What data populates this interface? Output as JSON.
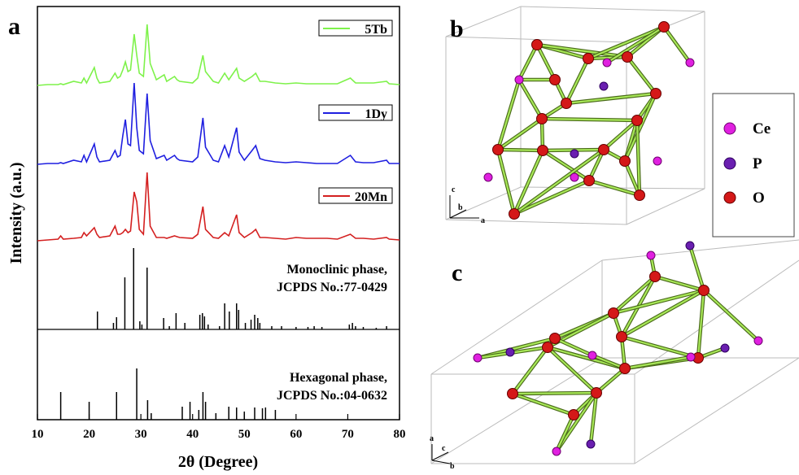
{
  "chart_data": {
    "type": "line",
    "panel_label": "a",
    "xlabel": "2θ (Degree)",
    "ylabel": "Intensity (a.u.)",
    "xlim": [
      10,
      80
    ],
    "xticks": [
      10,
      20,
      30,
      40,
      50,
      60,
      70,
      80
    ],
    "ylim": [
      0,
      110
    ],
    "x": [
      10,
      12,
      14,
      14.5,
      15,
      17,
      18.5,
      19,
      19.5,
      21,
      21.5,
      22,
      24,
      25,
      25.5,
      26,
      26.5,
      27,
      27.5,
      28,
      28.7,
      29.2,
      29.7,
      30.5,
      31.2,
      31.8,
      33,
      34.5,
      35,
      36.5,
      37,
      37.5,
      40,
      41,
      42,
      42.5,
      44,
      45,
      46.2,
      47,
      48.5,
      49,
      50,
      51.5,
      52.2,
      53,
      54,
      56,
      58,
      60,
      62,
      64,
      66,
      68,
      70.5,
      71.5,
      73,
      75,
      77.5,
      78,
      80
    ],
    "series": [
      {
        "name": "5Tb",
        "color": "#7ef24a",
        "values": [
          3,
          4,
          4,
          5,
          4,
          8,
          6,
          12,
          6,
          25,
          12,
          6,
          8,
          18,
          12,
          14,
          22,
          32,
          20,
          22,
          66,
          40,
          18,
          14,
          78,
          30,
          10,
          16,
          8,
          14,
          10,
          8,
          6,
          12,
          40,
          20,
          8,
          6,
          18,
          10,
          24,
          12,
          8,
          14,
          18,
          8,
          8,
          6,
          5,
          6,
          5,
          5,
          5,
          5,
          12,
          6,
          6,
          6,
          8,
          5,
          4
        ]
      },
      {
        "name": "1Dy",
        "color": "#1f1fe0",
        "values": [
          5,
          6,
          6,
          7,
          6,
          10,
          8,
          16,
          8,
          30,
          14,
          8,
          10,
          22,
          14,
          16,
          40,
          60,
          30,
          28,
          105,
          50,
          22,
          18,
          92,
          34,
          12,
          16,
          10,
          16,
          12,
          10,
          8,
          14,
          62,
          26,
          10,
          8,
          28,
          14,
          50,
          20,
          10,
          22,
          28,
          12,
          10,
          8,
          7,
          8,
          7,
          6,
          6,
          6,
          16,
          8,
          7,
          7,
          10,
          6,
          6
        ]
      },
      {
        "name": "20Mn",
        "color": "#d42020",
        "values": [
          2,
          3,
          4,
          8,
          4,
          5,
          6,
          12,
          8,
          18,
          10,
          6,
          8,
          20,
          10,
          10,
          12,
          16,
          12,
          14,
          62,
          50,
          16,
          10,
          86,
          20,
          6,
          6,
          5,
          8,
          7,
          6,
          5,
          10,
          44,
          16,
          6,
          5,
          12,
          8,
          34,
          12,
          6,
          12,
          16,
          6,
          6,
          5,
          4,
          6,
          5,
          5,
          5,
          4,
          10,
          5,
          5,
          4,
          6,
          4,
          3
        ]
      }
    ],
    "sticks": [
      {
        "lines": [
          "Monoclinic phase,",
          "JCPDS No.:77-0429"
        ],
        "color": "#000000",
        "x": [
          21.6,
          24.7,
          25.3,
          26.9,
          28.6,
          29.8,
          30.2,
          31.2,
          34.4,
          35.5,
          36.8,
          38.5,
          41.4,
          41.9,
          42.3,
          43.0,
          45.2,
          46.2,
          47.1,
          48.5,
          48.9,
          50.2,
          51.3,
          52.0,
          52.6,
          53.0,
          55.3,
          57.2,
          60,
          62.3,
          63.5,
          65,
          70.3,
          70.9,
          71.5,
          73,
          75.5,
          77.5
        ],
        "values": [
          22,
          8,
          15,
          64,
          100,
          10,
          6,
          76,
          14,
          4,
          20,
          8,
          18,
          20,
          16,
          6,
          4,
          32,
          22,
          32,
          24,
          8,
          12,
          18,
          14,
          8,
          4,
          4,
          3,
          3,
          4,
          3,
          6,
          8,
          4,
          3,
          2,
          4
        ]
      },
      {
        "lines": [
          "Hexagonal phase,",
          "JCPDS No.:04-0632"
        ],
        "color": "#000000",
        "x": [
          14.5,
          20,
          25.3,
          29.2,
          31.3,
          32,
          38,
          39.5,
          41.2,
          42,
          42.5,
          44.5,
          47,
          48.5,
          50,
          52,
          53.5,
          54.1,
          56
        ],
        "values": [
          34,
          22,
          34,
          63,
          24,
          8,
          16,
          22,
          12,
          34,
          22,
          8,
          16,
          28,
          10,
          20,
          14,
          24,
          12
        ]
      }
    ]
  },
  "structures": {
    "panel_b": "b",
    "panel_c": "c",
    "legend": [
      "Ce",
      "P",
      "O"
    ],
    "axes_b": [
      "c",
      "b",
      "a"
    ],
    "axes_c": [
      "a",
      "c",
      "b"
    ]
  }
}
